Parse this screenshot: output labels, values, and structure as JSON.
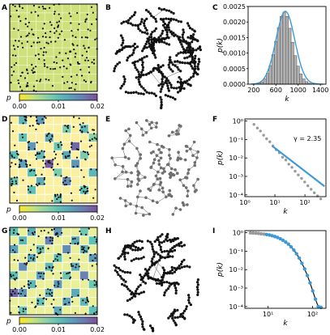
{
  "figure": {
    "panel_labels": [
      "A",
      "B",
      "C",
      "D",
      "E",
      "F",
      "G",
      "H",
      "I"
    ],
    "colorbar": {
      "symbol": "p",
      "ticks": [
        "0.00",
        "0.01",
        "0.02"
      ],
      "colors": [
        "#fde725",
        "#c7e37a",
        "#8fd3a4",
        "#5fc0b4",
        "#5a9fb8",
        "#6b7bb0",
        "#7a4f97"
      ]
    },
    "density_maps": [
      {
        "panel": "A",
        "background": "#cde07a",
        "grid_color": "#eef4c8",
        "patch_levels": []
      },
      {
        "panel": "D",
        "background": "#fbf0a0",
        "grid_color": "#ffffff",
        "patch_levels": [
          [
            1,
            0,
            0.55
          ],
          [
            3,
            0,
            0.7
          ],
          [
            6,
            1,
            0.4
          ],
          [
            8,
            1,
            0.55
          ],
          [
            1,
            2,
            0.5
          ],
          [
            4,
            2,
            0.6
          ],
          [
            9,
            2,
            0.35
          ],
          [
            2,
            3,
            0.7
          ],
          [
            5,
            3,
            0.45
          ],
          [
            7,
            3,
            0.9
          ],
          [
            0,
            4,
            0.5
          ],
          [
            3,
            4,
            0.55
          ],
          [
            6,
            4,
            0.6
          ],
          [
            8,
            4,
            0.4
          ],
          [
            1,
            5,
            0.65
          ],
          [
            4,
            5,
            0.95
          ],
          [
            7,
            5,
            0.7
          ],
          [
            2,
            6,
            0.5
          ],
          [
            5,
            6,
            0.4
          ],
          [
            9,
            6,
            0.55
          ],
          [
            0,
            7,
            0.45
          ],
          [
            3,
            7,
            0.6
          ],
          [
            6,
            7,
            0.75
          ],
          [
            8,
            8,
            0.5
          ],
          [
            2,
            8,
            0.5
          ],
          [
            5,
            9,
            0.45
          ]
        ]
      },
      {
        "panel": "G",
        "background": "#eaf09a",
        "grid_color": "#ffffff",
        "patch_levels": [
          [
            0,
            0,
            0.5
          ],
          [
            2,
            0,
            0.6
          ],
          [
            5,
            0,
            0.7
          ],
          [
            8,
            0,
            0.45
          ],
          [
            1,
            1,
            0.55
          ],
          [
            4,
            1,
            0.8
          ],
          [
            7,
            1,
            0.6
          ],
          [
            9,
            1,
            0.5
          ],
          [
            0,
            2,
            0.65
          ],
          [
            3,
            2,
            0.45
          ],
          [
            6,
            2,
            0.75
          ],
          [
            8,
            2,
            0.55
          ],
          [
            2,
            3,
            0.6
          ],
          [
            5,
            3,
            0.5
          ],
          [
            9,
            3,
            0.7
          ],
          [
            1,
            4,
            0.75
          ],
          [
            4,
            4,
            0.55
          ],
          [
            7,
            4,
            0.6
          ],
          [
            0,
            5,
            0.5
          ],
          [
            3,
            5,
            0.65
          ],
          [
            6,
            5,
            0.45
          ],
          [
            8,
            5,
            0.8
          ],
          [
            2,
            6,
            0.55
          ],
          [
            5,
            6,
            0.7
          ],
          [
            9,
            6,
            0.45
          ],
          [
            0,
            7,
            0.9
          ],
          [
            1,
            7,
            0.7
          ],
          [
            4,
            7,
            0.55
          ],
          [
            7,
            7,
            0.6
          ],
          [
            3,
            8,
            0.5
          ],
          [
            6,
            8,
            0.65
          ],
          [
            8,
            8,
            0.55
          ],
          [
            1,
            9,
            0.45
          ],
          [
            5,
            9,
            0.6
          ],
          [
            9,
            9,
            0.5
          ]
        ]
      }
    ],
    "networks": [
      {
        "panel": "B",
        "style": "dense-black",
        "node_color": "#111111",
        "edge_color": "#555555"
      },
      {
        "panel": "E",
        "style": "sparse-gray",
        "node_color": "#6e6e6e",
        "edge_color": "#8a8a8a"
      },
      {
        "panel": "H",
        "style": "dense-black",
        "node_color": "#111111",
        "edge_color": "#555555"
      }
    ]
  },
  "chart_data": [
    {
      "panel": "C",
      "type": "bar",
      "xlabel": "k",
      "ylabel": "p(k)",
      "xlim": [
        100,
        1500
      ],
      "ylim": [
        0,
        0.0025
      ],
      "x_ticks": [
        "200",
        "600",
        "1000",
        "1400"
      ],
      "y_ticks": [
        "0.0000",
        "0.0005",
        "0.0010",
        "0.0015",
        "0.0020",
        "0.0025"
      ],
      "bar_color": "#b0b0b0",
      "fit_color": "#3d9ad6",
      "bins_x": [
        300,
        350,
        400,
        450,
        500,
        550,
        600,
        650,
        700,
        750,
        800,
        850,
        900,
        950,
        1000,
        1050,
        1100,
        1150,
        1200,
        1250
      ],
      "bins_y": [
        3e-05,
        7e-05,
        0.00017,
        0.00035,
        0.0006,
        0.00095,
        0.00138,
        0.00182,
        0.00218,
        0.00232,
        0.00218,
        0.0018,
        0.00135,
        0.00092,
        0.00058,
        0.00033,
        0.00017,
        8e-05,
        3e-05,
        1e-05
      ],
      "fit_mean": 770,
      "fit_sd": 170
    },
    {
      "panel": "F",
      "type": "scatter",
      "xlabel": "k",
      "ylabel": "p(k)",
      "xscale": "log",
      "yscale": "log",
      "xlim": [
        1,
        500
      ],
      "ylim": [
        8e-05,
        1.3
      ],
      "x_ticks": [
        1,
        10,
        100
      ],
      "x_tick_labels": [
        "10⁰",
        "10¹",
        "10²"
      ],
      "y_ticks": [
        1,
        0.1,
        0.01,
        0.001,
        0.0001
      ],
      "y_tick_labels": [
        "10⁰",
        "10⁻¹",
        "10⁻²",
        "10⁻³",
        "10⁻⁴"
      ],
      "annotation": "γ = 2.35",
      "gamma": 2.35,
      "point_color": "#9a9a9a",
      "fit_color": "#3d9ad6",
      "x": [
        2,
        2.6,
        3.3,
        4.2,
        5.3,
        6.8,
        8.6,
        11,
        14,
        18,
        23,
        29,
        37,
        47,
        60,
        77,
        98,
        125,
        160,
        205,
        262,
        335
      ],
      "y": [
        0.66,
        0.42,
        0.29,
        0.17,
        0.11,
        0.075,
        0.045,
        0.028,
        0.019,
        0.011,
        0.0078,
        0.0046,
        0.0031,
        0.0019,
        0.0012,
        0.00078,
        0.0005,
        0.00031,
        0.0002,
        0.00013,
        8.8e-05,
        6e-05
      ]
    },
    {
      "panel": "I",
      "type": "scatter",
      "xlabel": "k",
      "ylabel": "p(k)",
      "xscale": "log",
      "yscale": "log",
      "xlim": [
        3,
        200
      ],
      "ylim": [
        8e-05,
        1.3
      ],
      "x_ticks": [
        10,
        100
      ],
      "x_tick_labels": [
        "10¹",
        "10²"
      ],
      "y_ticks": [
        1,
        0.1,
        0.01,
        0.001,
        0.0001
      ],
      "y_tick_labels": [
        "10⁰",
        "10⁻¹",
        "10⁻²",
        "10⁻³",
        "10⁻⁴"
      ],
      "point_color": "#9a9a9a",
      "curve_color": "#3d9ad6",
      "fit_color": "#111111",
      "x": [
        4,
        4.6,
        5.3,
        6.1,
        7,
        8.1,
        9.3,
        10.7,
        12.3,
        14.2,
        16.3,
        18.8,
        21.6,
        24.9,
        28.6,
        32.9,
        37.9,
        43.6,
        50.2,
        57.7,
        66.4,
        76.4,
        87.9,
        101,
        116,
        134,
        154
      ],
      "y": [
        0.98,
        0.96,
        0.94,
        0.91,
        0.88,
        0.84,
        0.8,
        0.75,
        0.69,
        0.62,
        0.55,
        0.47,
        0.39,
        0.31,
        0.24,
        0.17,
        0.115,
        0.072,
        0.042,
        0.022,
        0.011,
        0.0048,
        0.0019,
        0.0007,
        0.00025,
        0.0001,
        9e-05
      ]
    }
  ]
}
